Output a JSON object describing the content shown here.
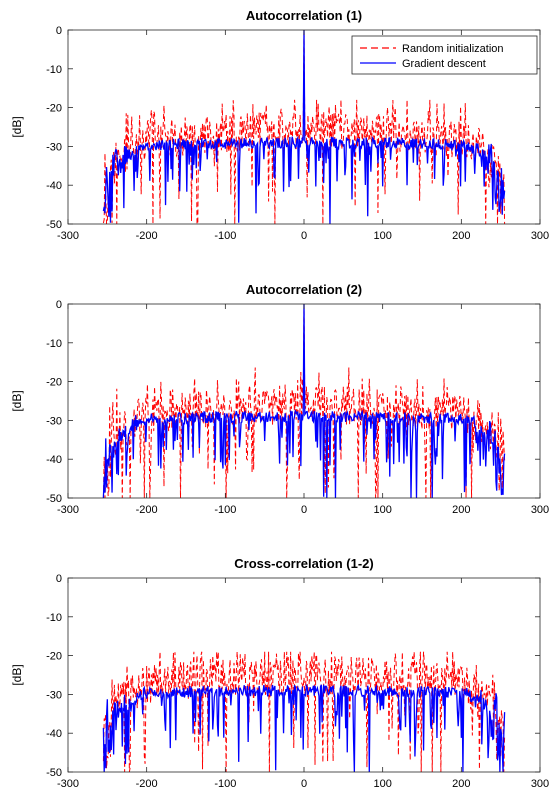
{
  "colors": {
    "random": "#ff0000",
    "gradient": "#0000ff",
    "axes": "#262626"
  },
  "legend": {
    "placement": "top-right",
    "shown_on_panel": 0
  },
  "chart_data": [
    {
      "type": "line",
      "title": "Autocorrelation (1)",
      "xlabel": "",
      "ylabel": "[dB]",
      "xlim": [
        -300,
        300
      ],
      "ylim": [
        -50,
        0
      ],
      "grid": false,
      "xticks": [
        "-300",
        "-200",
        "-100",
        "0",
        "100",
        "200",
        "300"
      ],
      "yticks": [
        "0",
        "-10",
        "-20",
        "-30",
        "-40",
        "-50"
      ],
      "x_range": [
        -255,
        255
      ],
      "series": [
        {
          "name": "Random initialization",
          "style": "dashed",
          "color": "#ff0000",
          "peak_at_0": 0,
          "typical_level": -26,
          "envelope_max": -18,
          "floor": -50
        },
        {
          "name": "Gradient descent",
          "style": "solid",
          "color": "#0000ff",
          "peak_at_0": 0,
          "typical_level": -29,
          "envelope_max": -27,
          "floor": -50
        }
      ]
    },
    {
      "type": "line",
      "title": "Autocorrelation (2)",
      "xlabel": "",
      "ylabel": "[dB]",
      "xlim": [
        -300,
        300
      ],
      "ylim": [
        -50,
        0
      ],
      "grid": false,
      "xticks": [
        "-300",
        "-200",
        "-100",
        "0",
        "100",
        "200",
        "300"
      ],
      "yticks": [
        "0",
        "-10",
        "-20",
        "-30",
        "-40",
        "-50"
      ],
      "x_range": [
        -255,
        255
      ],
      "series": [
        {
          "name": "Random initialization",
          "style": "dashed",
          "color": "#ff0000",
          "peak_at_0": 0,
          "typical_level": -26,
          "envelope_max": -16,
          "floor": -50
        },
        {
          "name": "Gradient descent",
          "style": "solid",
          "color": "#0000ff",
          "peak_at_0": 0,
          "typical_level": -29,
          "envelope_max": -27,
          "floor": -50
        }
      ]
    },
    {
      "type": "line",
      "title": "Cross-correlation (1-2)",
      "xlabel": "",
      "ylabel": "[dB]",
      "xlim": [
        -300,
        300
      ],
      "ylim": [
        -50,
        0
      ],
      "grid": false,
      "xticks": [
        "-300",
        "-200",
        "-100",
        "0",
        "100",
        "200",
        "300"
      ],
      "yticks": [
        "0",
        "-10",
        "-20",
        "-30",
        "-40",
        "-50"
      ],
      "x_range": [
        -255,
        255
      ],
      "series": [
        {
          "name": "Random initialization",
          "style": "dashed",
          "color": "#ff0000",
          "peak_at_0": null,
          "typical_level": -25,
          "envelope_max": -19,
          "floor": -50
        },
        {
          "name": "Gradient descent",
          "style": "solid",
          "color": "#0000ff",
          "peak_at_0": null,
          "typical_level": -29,
          "envelope_max": -27,
          "floor": -50
        }
      ]
    }
  ]
}
